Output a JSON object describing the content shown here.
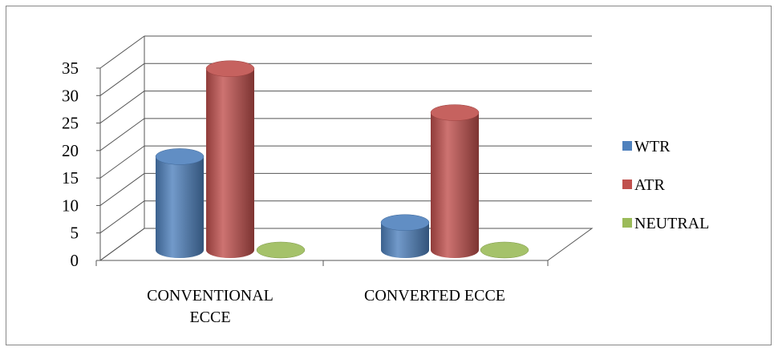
{
  "chart_data": {
    "type": "bar",
    "style": "3d-cylinder",
    "categories": [
      "CONVENTIONAL ECCE",
      "CONVERTED ECCE"
    ],
    "series": [
      {
        "name": "WTR",
        "values": [
          17,
          5
        ],
        "color": "#4F81BD"
      },
      {
        "name": "ATR",
        "values": [
          33,
          25
        ],
        "color": "#C0504D"
      },
      {
        "name": "NEUTRAL",
        "values": [
          0,
          0
        ],
        "color": "#9BBB59"
      }
    ],
    "ylim": [
      0,
      35
    ],
    "yticks": [
      0,
      5,
      10,
      15,
      20,
      25,
      30,
      35
    ],
    "grid": true,
    "legend": "right"
  }
}
